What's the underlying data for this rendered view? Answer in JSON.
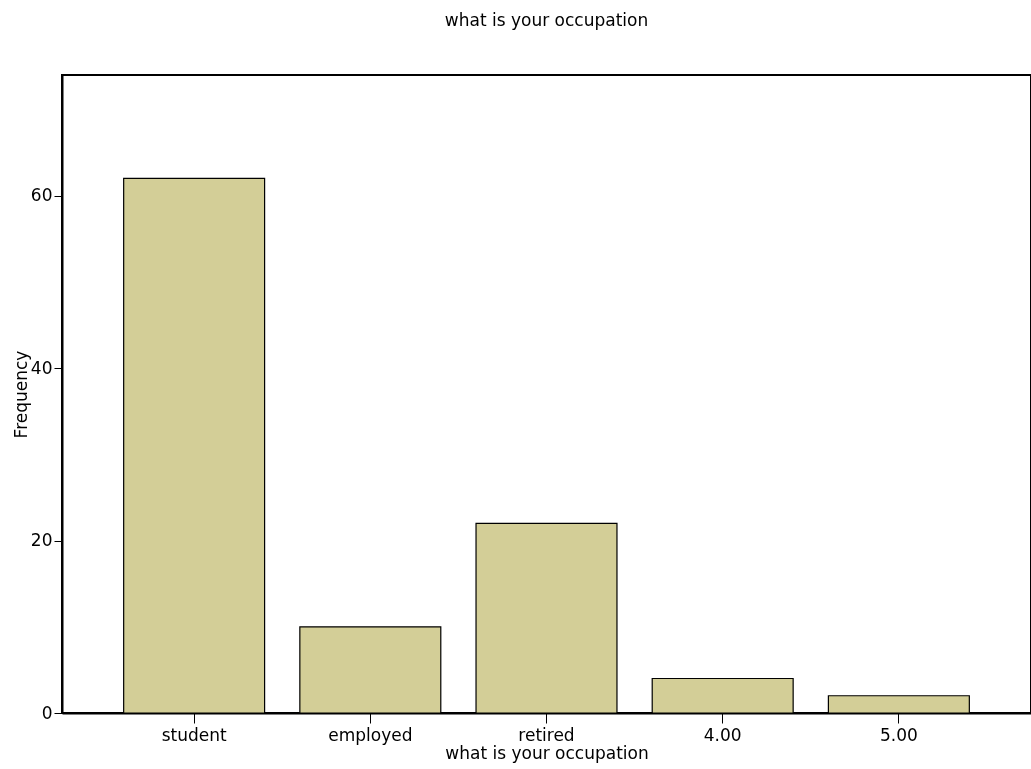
{
  "chart_data": {
    "type": "bar",
    "title": "what is your occupation",
    "xlabel": "what is your occupation",
    "ylabel": "Frequency",
    "categories": [
      "student",
      "employed",
      "retired",
      "4.00",
      "5.00"
    ],
    "values": [
      62,
      10,
      22,
      4,
      2
    ],
    "color": "#d3ce97",
    "ylim": [
      0,
      74
    ],
    "yticks": [
      0,
      20,
      40,
      60
    ]
  }
}
